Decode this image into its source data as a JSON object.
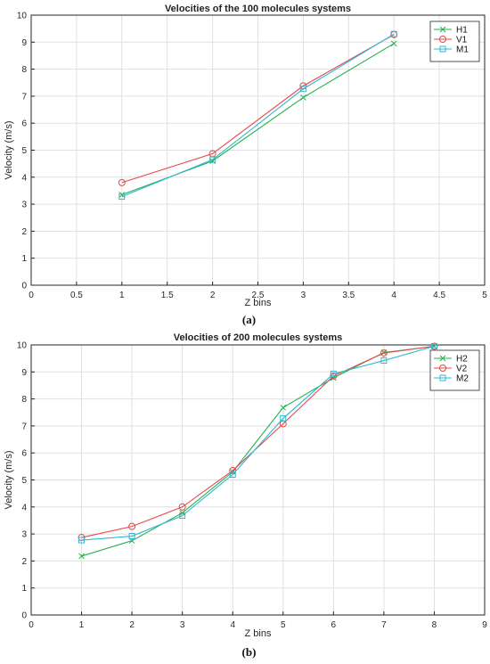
{
  "chart_data": [
    {
      "type": "line",
      "title": "Velocities of the 100 molecules systems",
      "xlabel": "Z bins",
      "ylabel": "Velocity (m/s)",
      "caption": "(a)",
      "xlim": [
        0,
        5
      ],
      "ylim": [
        0,
        10
      ],
      "xticks": [
        0,
        0.5,
        1,
        1.5,
        2,
        2.5,
        3,
        3.5,
        4,
        4.5,
        5
      ],
      "xtick_labels": [
        "0",
        "0.5",
        "1",
        "1.5",
        "2",
        "2.5",
        "3",
        "3.5",
        "4",
        "4.5",
        "5"
      ],
      "yticks": [
        0,
        1,
        2,
        3,
        4,
        5,
        6,
        7,
        8,
        9,
        10
      ],
      "ytick_labels": [
        "0",
        "1",
        "2",
        "3",
        "4",
        "5",
        "6",
        "7",
        "8",
        "9",
        "10"
      ],
      "grid": true,
      "legend_position": "top-right",
      "x": [
        1,
        2,
        3,
        4
      ],
      "series": [
        {
          "name": "H1",
          "marker": "x",
          "color": "#22b14c",
          "values": [
            3.35,
            4.6,
            6.95,
            8.95
          ]
        },
        {
          "name": "V1",
          "marker": "o",
          "color": "#e8474a",
          "values": [
            3.8,
            4.87,
            7.38,
            9.28
          ]
        },
        {
          "name": "M1",
          "marker": "s",
          "color": "#2fb8d4",
          "values": [
            3.28,
            4.65,
            7.27,
            9.3
          ]
        }
      ]
    },
    {
      "type": "line",
      "title": "Velocities of 200 molecules systems",
      "xlabel": "Z bins",
      "ylabel": "Velocity (m/s)",
      "caption": "(b)",
      "xlim": [
        0,
        9
      ],
      "ylim": [
        0,
        10
      ],
      "xticks": [
        0,
        1,
        2,
        3,
        4,
        5,
        6,
        7,
        8,
        9
      ],
      "xtick_labels": [
        "0",
        "1",
        "2",
        "3",
        "4",
        "5",
        "6",
        "7",
        "8",
        "9"
      ],
      "yticks": [
        0,
        1,
        2,
        3,
        4,
        5,
        6,
        7,
        8,
        9,
        10
      ],
      "ytick_labels": [
        "0",
        "1",
        "2",
        "3",
        "4",
        "5",
        "6",
        "7",
        "8",
        "9",
        "10"
      ],
      "grid": true,
      "legend_position": "top-right",
      "x": [
        1,
        2,
        3,
        4,
        5,
        6,
        7,
        8
      ],
      "series": [
        {
          "name": "H2",
          "marker": "x",
          "color": "#22b14c",
          "values": [
            2.18,
            2.75,
            3.78,
            5.3,
            7.68,
            8.78,
            9.72,
            9.95
          ]
        },
        {
          "name": "V2",
          "marker": "o",
          "color": "#e8474a",
          "values": [
            2.87,
            3.28,
            4.0,
            5.35,
            7.08,
            8.85,
            9.7,
            9.95
          ]
        },
        {
          "name": "M2",
          "marker": "s",
          "color": "#2fb8d4",
          "values": [
            2.77,
            2.92,
            3.68,
            5.2,
            7.28,
            8.93,
            9.42,
            9.95
          ]
        }
      ]
    }
  ]
}
